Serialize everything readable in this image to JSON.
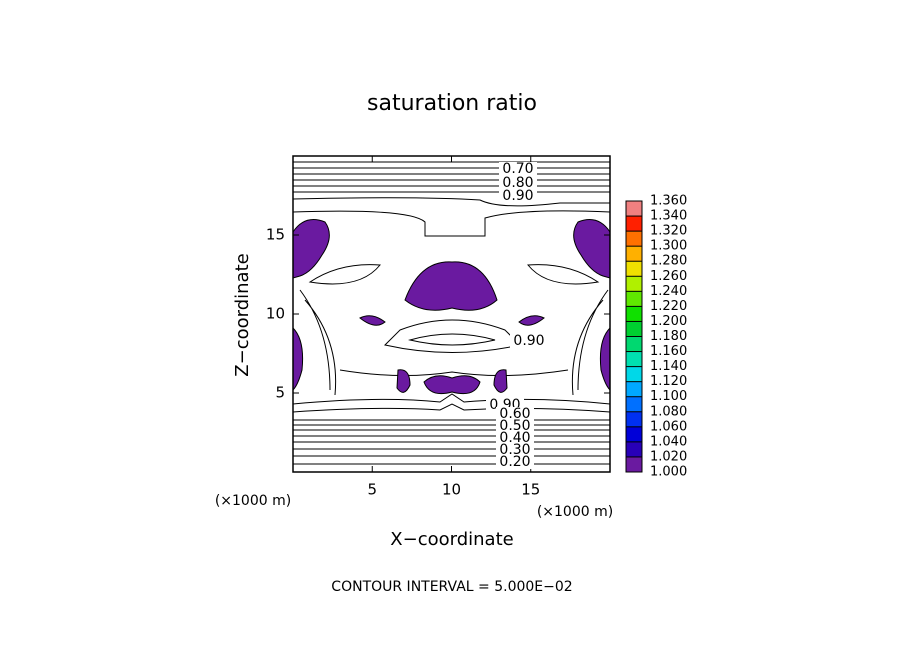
{
  "chart_data": {
    "type": "contour",
    "title": "saturation ratio",
    "xlabel": "X−coordinate",
    "ylabel": "Z−coordinate",
    "xunit": "(×1000 m)",
    "yunit": "(×1000 m)",
    "xlim": [
      0,
      20
    ],
    "ylim": [
      0,
      20
    ],
    "xticks": [
      5,
      10,
      15
    ],
    "yticks": [
      5,
      10,
      15
    ],
    "contour_labels": [
      {
        "value": 0.7,
        "label": "0.70"
      },
      {
        "value": 0.8,
        "label": "0.80"
      },
      {
        "value": 0.9,
        "label": "0.90"
      },
      {
        "value": 0.9,
        "label": "0.90"
      },
      {
        "value": 0.9,
        "label": "0.90"
      },
      {
        "value": 0.6,
        "label": "0.60"
      },
      {
        "value": 0.5,
        "label": "0.50"
      },
      {
        "value": 0.4,
        "label": "0.40"
      },
      {
        "value": 0.3,
        "label": "0.30"
      },
      {
        "value": 0.2,
        "label": "0.20"
      }
    ],
    "colorbar": {
      "lim": [
        1.0,
        1.36
      ],
      "ticks": [
        {
          "value": 1.0,
          "label": "1.000"
        },
        {
          "value": 1.02,
          "label": "1.020"
        },
        {
          "value": 1.04,
          "label": "1.040"
        },
        {
          "value": 1.06,
          "label": "1.060"
        },
        {
          "value": 1.08,
          "label": "1.080"
        },
        {
          "value": 1.1,
          "label": "1.100"
        },
        {
          "value": 1.12,
          "label": "1.120"
        },
        {
          "value": 1.14,
          "label": "1.140"
        },
        {
          "value": 1.16,
          "label": "1.160"
        },
        {
          "value": 1.18,
          "label": "1.180"
        },
        {
          "value": 1.2,
          "label": "1.200"
        },
        {
          "value": 1.22,
          "label": "1.220"
        },
        {
          "value": 1.24,
          "label": "1.240"
        },
        {
          "value": 1.26,
          "label": "1.260"
        },
        {
          "value": 1.28,
          "label": "1.280"
        },
        {
          "value": 1.3,
          "label": "1.300"
        },
        {
          "value": 1.32,
          "label": "1.320"
        },
        {
          "value": 1.34,
          "label": "1.340"
        },
        {
          "value": 1.36,
          "label": "1.360"
        }
      ],
      "colors": [
        "#6a1aa0",
        "#2800b8",
        "#0000d8",
        "#0030f0",
        "#0070ff",
        "#00a8ff",
        "#00d8e8",
        "#00e0b0",
        "#00d870",
        "#00d030",
        "#10e000",
        "#60e800",
        "#b0f000",
        "#f0e000",
        "#ffb000",
        "#ff7000",
        "#ff2000",
        "#f08080"
      ]
    },
    "footnote": "CONTOUR INTERVAL = 5.000E−02"
  }
}
